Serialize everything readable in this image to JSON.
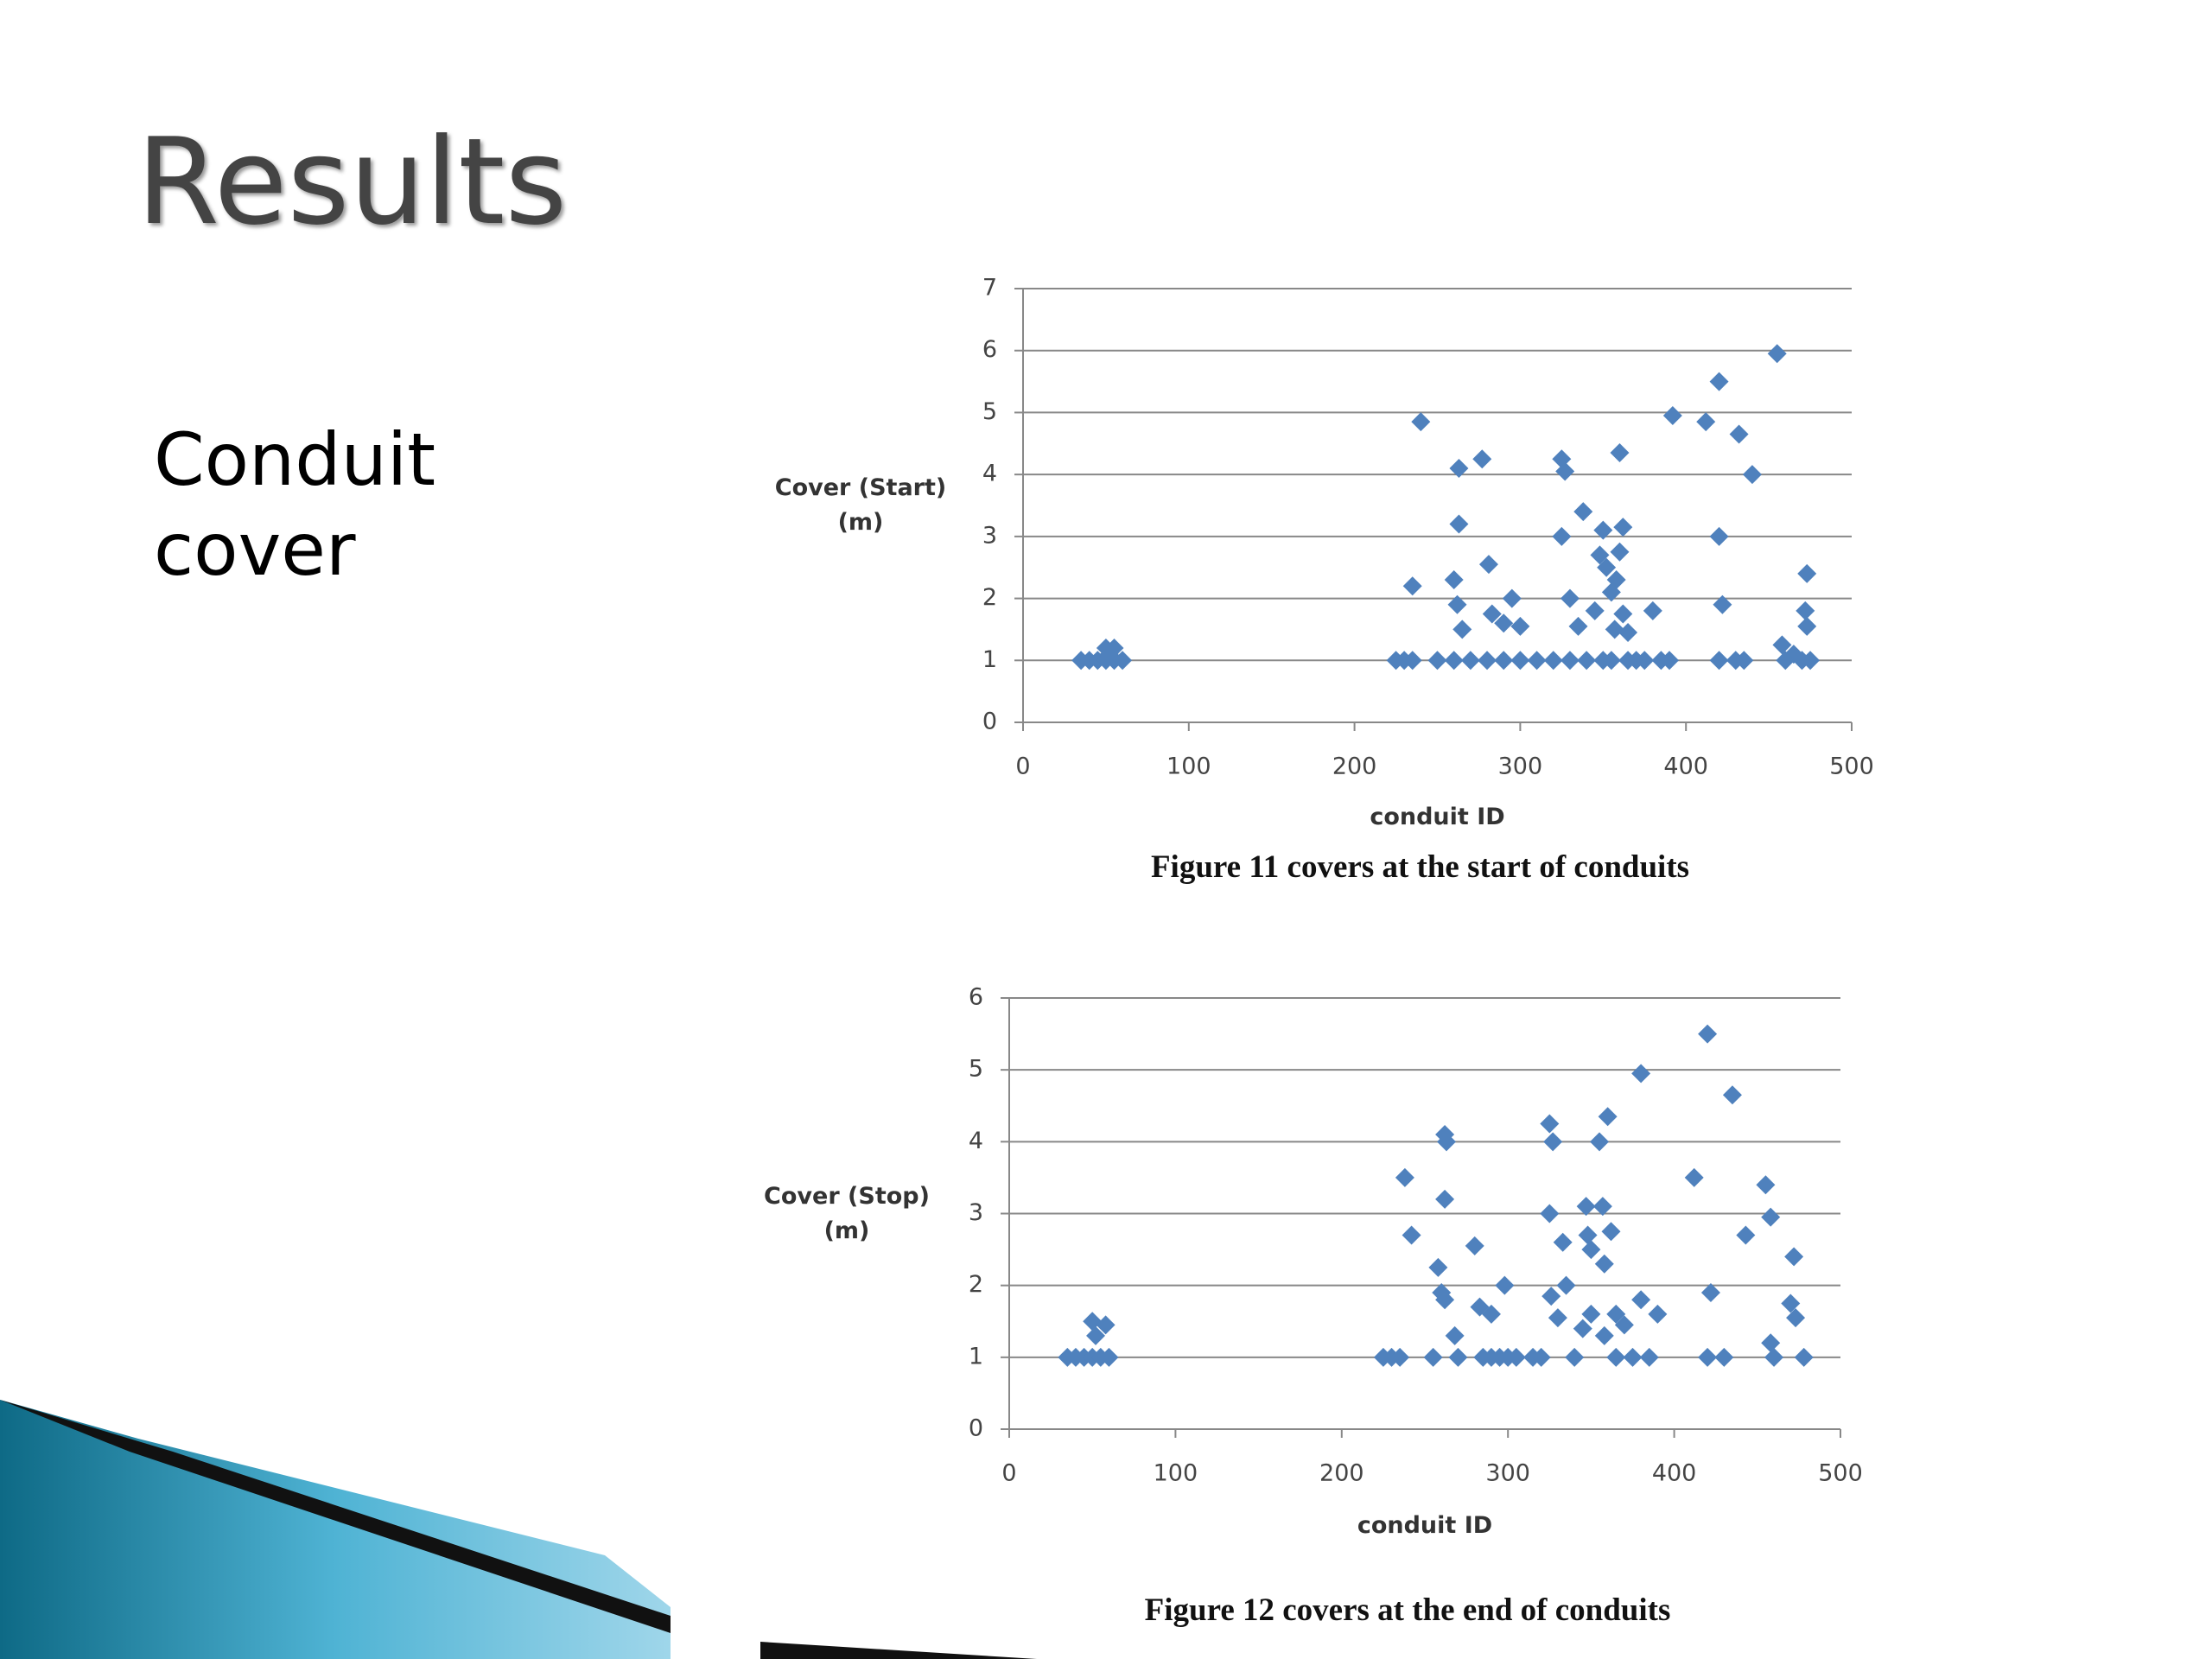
{
  "title": "Results",
  "heading": "Conduit cover",
  "chart_data": [
    {
      "type": "scatter",
      "caption": "Figure 11 covers at the start of conduits",
      "x_label": "conduit ID",
      "y_label": "Cover (Start) (m)",
      "color": "#4f81bd",
      "grid": true,
      "xlim": [
        0,
        500
      ],
      "xticks": [
        0,
        100,
        200,
        300,
        400,
        500
      ],
      "ylim": [
        0,
        7
      ],
      "yticks": [
        0,
        1,
        2,
        3,
        4,
        5,
        6,
        7
      ],
      "series": [
        {
          "x": [
            35,
            40,
            45,
            50,
            55,
            60,
            50,
            55,
            52,
            225,
            230,
            235,
            235,
            240,
            263,
            277,
            263,
            260,
            262,
            265,
            281,
            283,
            290,
            295,
            300,
            250,
            260,
            270,
            280,
            290,
            300,
            310,
            320,
            330,
            325,
            327,
            325,
            330,
            335,
            338,
            345,
            348,
            350,
            352,
            355,
            357,
            360,
            362,
            360,
            358,
            362,
            365,
            380,
            392,
            412,
            420,
            420,
            422,
            432,
            440,
            455,
            458,
            465,
            473,
            472,
            473,
            340,
            350,
            355,
            365,
            370,
            375,
            385,
            390,
            420,
            430,
            435,
            460,
            470,
            475
          ],
          "values": [
            1,
            1,
            1,
            1,
            1,
            1,
            1.2,
            1.2,
            1.1,
            1,
            1,
            1,
            2.2,
            4.85,
            4.1,
            4.25,
            3.2,
            2.3,
            1.9,
            1.5,
            2.55,
            1.75,
            1.6,
            2.0,
            1.55,
            1,
            1,
            1,
            1,
            1,
            1,
            1,
            1,
            1,
            4.25,
            4.05,
            3.0,
            2.0,
            1.55,
            3.4,
            1.8,
            2.7,
            3.1,
            2.5,
            2.1,
            1.5,
            4.35,
            3.15,
            2.75,
            2.3,
            1.75,
            1.45,
            1.8,
            4.95,
            4.85,
            5.5,
            3.0,
            1.9,
            4.65,
            4.0,
            5.95,
            1.25,
            1.1,
            2.4,
            1.8,
            1.55,
            1,
            1,
            1,
            1,
            1,
            1,
            1,
            1,
            1,
            1,
            1,
            1,
            1,
            1
          ]
        }
      ]
    },
    {
      "type": "scatter",
      "caption": "Figure 12 covers at the end of conduits",
      "x_label": "conduit ID",
      "y_label": "Cover (Stop) (m)",
      "color": "#4f81bd",
      "grid": true,
      "xlim": [
        0,
        500
      ],
      "xticks": [
        0,
        100,
        200,
        300,
        400,
        500
      ],
      "ylim": [
        0,
        6
      ],
      "yticks": [
        0,
        1,
        2,
        3,
        4,
        5,
        6
      ],
      "series": [
        {
          "x": [
            35,
            40,
            45,
            50,
            55,
            60,
            52,
            50,
            58,
            225,
            230,
            235,
            238,
            242,
            255,
            258,
            260,
            262,
            262,
            263,
            262,
            268,
            270,
            280,
            283,
            290,
            298,
            285,
            290,
            295,
            300,
            305,
            315,
            320,
            325,
            327,
            325,
            326,
            330,
            333,
            335,
            340,
            345,
            347,
            348,
            350,
            350,
            355,
            357,
            358,
            358,
            360,
            362,
            365,
            365,
            370,
            375,
            380,
            380,
            385,
            390,
            412,
            420,
            422,
            420,
            430,
            435,
            443,
            455,
            458,
            458,
            460,
            472,
            470,
            473,
            478
          ],
          "values": [
            1,
            1,
            1,
            1,
            1,
            1,
            1.3,
            1.5,
            1.45,
            1,
            1,
            1,
            3.5,
            2.7,
            1,
            2.25,
            1.9,
            1.8,
            4.1,
            4.0,
            3.2,
            1.3,
            1,
            2.55,
            1.7,
            1.6,
            2.0,
            1,
            1,
            1,
            1,
            1,
            1,
            1,
            4.25,
            4.0,
            3.0,
            1.85,
            1.55,
            2.6,
            2.0,
            1,
            1.4,
            3.1,
            2.7,
            2.5,
            1.6,
            4.0,
            3.1,
            2.3,
            1.3,
            4.35,
            2.75,
            1.6,
            1,
            1.45,
            1,
            4.95,
            1.8,
            1,
            1.6,
            3.5,
            5.5,
            1.9,
            1,
            1,
            4.65,
            2.7,
            3.4,
            2.95,
            1.2,
            1,
            2.4,
            1.75,
            1.55,
            1
          ]
        }
      ]
    }
  ]
}
